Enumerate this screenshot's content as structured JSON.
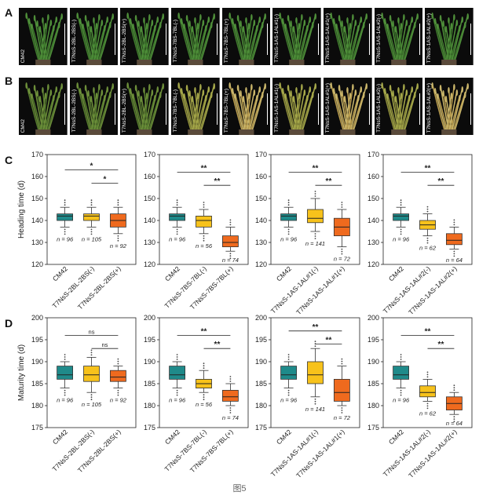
{
  "panels": {
    "A": "A",
    "B": "B",
    "C": "C",
    "D": "D"
  },
  "photos": {
    "row_a": [
      "CM42",
      "T7NsS-2BL-2BS(-)",
      "T7NsS-2BL-2BS(+)",
      "T7NsS-7BS-7BL(-)",
      "T7NsS-7BS-7BL(+)",
      "T7NsS-1AS-1AL#1(-)",
      "T7NsS-1AS-1AL#1(+)",
      "T7NsS-1AS-1AL#2(-)",
      "T7NsS-1AS-1AL#2(+)"
    ],
    "row_b": [
      "CM42",
      "T7NsS-2BL-2BS(-)",
      "T7NsS-2BL-2BS(+)",
      "T7NsS-7BS-7BL(-)",
      "T7NsS-7BS-7BL(+)",
      "T7NsS-1AS-1AL#1(-)",
      "T7NsS-1AS-1AL#1(+)",
      "T7NsS-1AS-1AL#2(-)",
      "T7NsS-1AS-1AL#2(+)"
    ]
  },
  "colors": {
    "teal": "#1f8a8a",
    "yellow": "#f7c21b",
    "orange": "#ef6a1e",
    "green_plant": "#4f8f3a",
    "photo_bg": "#0b0b0b"
  },
  "chart_data": [
    {
      "type": "box",
      "row": "C",
      "ylabel": "Heading time (d)",
      "ylim": [
        120,
        170
      ],
      "yticks": [
        120,
        130,
        140,
        150,
        160,
        170
      ],
      "categories": [
        "CM42",
        "T7NsS-2BL-2BS(-)",
        "T7NsS-2BL-2BS(+)"
      ],
      "boxes": [
        {
          "min": 137,
          "q1": 140,
          "median": 142,
          "q3": 143,
          "max": 146,
          "color": "teal",
          "n": "n = 96"
        },
        {
          "min": 137,
          "q1": 140,
          "median": 142,
          "q3": 143,
          "max": 146,
          "color": "yellow",
          "n": "n = 105"
        },
        {
          "min": 134,
          "q1": 137,
          "median": 140,
          "q3": 143,
          "max": 146,
          "color": "orange",
          "n": "n = 92"
        }
      ],
      "sig": [
        {
          "from": 0,
          "to": 2,
          "label": "*",
          "y": 163
        },
        {
          "from": 1,
          "to": 2,
          "label": "*",
          "y": 157
        }
      ]
    },
    {
      "type": "box",
      "row": "C",
      "ylabel": "",
      "ylim": [
        120,
        170
      ],
      "yticks": [
        120,
        130,
        140,
        150,
        160,
        170
      ],
      "categories": [
        "CM42",
        "T7NsS-7BS-7BL(-)",
        "T7NsS-7BS-7BL(+)"
      ],
      "boxes": [
        {
          "min": 137,
          "q1": 140,
          "median": 142,
          "q3": 143,
          "max": 146,
          "color": "teal",
          "n": "n = 96"
        },
        {
          "min": 134,
          "q1": 137,
          "median": 140,
          "q3": 142,
          "max": 145,
          "color": "yellow",
          "n": "n = 56"
        },
        {
          "min": 126,
          "q1": 128,
          "median": 130,
          "q3": 133,
          "max": 137,
          "color": "orange",
          "n": "n = 74"
        }
      ],
      "sig": [
        {
          "from": 0,
          "to": 2,
          "label": "**",
          "y": 162
        },
        {
          "from": 1,
          "to": 2,
          "label": "**",
          "y": 156
        }
      ]
    },
    {
      "type": "box",
      "row": "C",
      "ylabel": "",
      "ylim": [
        120,
        170
      ],
      "yticks": [
        120,
        130,
        140,
        150,
        160,
        170
      ],
      "categories": [
        "CM42",
        "T7NsS-1AS-1AL#1(-)",
        "T7NsS-1AS-1AL#1(+)"
      ],
      "boxes": [
        {
          "min": 137,
          "q1": 140,
          "median": 142,
          "q3": 143,
          "max": 146,
          "color": "teal",
          "n": "n = 96"
        },
        {
          "min": 135,
          "q1": 139,
          "median": 141,
          "q3": 145,
          "max": 150,
          "color": "yellow",
          "n": "n = 141"
        },
        {
          "min": 128,
          "q1": 133,
          "median": 137,
          "q3": 141,
          "max": 145,
          "color": "orange",
          "n": "n = 72"
        }
      ],
      "sig": [
        {
          "from": 0,
          "to": 2,
          "label": "**",
          "y": 162
        },
        {
          "from": 1,
          "to": 2,
          "label": "**",
          "y": 156
        }
      ]
    },
    {
      "type": "box",
      "row": "C",
      "ylabel": "",
      "ylim": [
        120,
        170
      ],
      "yticks": [
        120,
        130,
        140,
        150,
        160,
        170
      ],
      "categories": [
        "CM42",
        "T7NsS-1AS-1AL#2(-)",
        "T7NsS-1AS-1AL#2(+)"
      ],
      "boxes": [
        {
          "min": 137,
          "q1": 140,
          "median": 142,
          "q3": 143,
          "max": 146,
          "color": "teal",
          "n": "n = 96"
        },
        {
          "min": 133,
          "q1": 136,
          "median": 138,
          "q3": 140,
          "max": 143,
          "color": "yellow",
          "n": "n = 62"
        },
        {
          "min": 127,
          "q1": 129,
          "median": 131,
          "q3": 134,
          "max": 137,
          "color": "orange",
          "n": "n = 64"
        }
      ],
      "sig": [
        {
          "from": 0,
          "to": 2,
          "label": "**",
          "y": 162
        },
        {
          "from": 1,
          "to": 2,
          "label": "**",
          "y": 156
        }
      ]
    },
    {
      "type": "box",
      "row": "D",
      "ylabel": "Maturity time (d)",
      "ylim": [
        175,
        200
      ],
      "yticks": [
        175,
        180,
        185,
        190,
        195,
        200
      ],
      "categories": [
        "CM42",
        "T7NsS-2BL-2BS(-)",
        "T7NsS-2BL-2BS(+)"
      ],
      "boxes": [
        {
          "min": 184,
          "q1": 186,
          "median": 187,
          "q3": 189,
          "max": 190,
          "color": "teal",
          "n": "n = 96"
        },
        {
          "min": 183,
          "q1": 185.5,
          "median": 187,
          "q3": 189,
          "max": 191,
          "color": "yellow",
          "n": "n = 105"
        },
        {
          "min": 184,
          "q1": 185.5,
          "median": 186.5,
          "q3": 188,
          "max": 189,
          "color": "orange",
          "n": "n = 92"
        }
      ],
      "sig": [
        {
          "from": 0,
          "to": 2,
          "label": "ns",
          "y": 196
        },
        {
          "from": 1,
          "to": 2,
          "label": "ns",
          "y": 193
        }
      ]
    },
    {
      "type": "box",
      "row": "D",
      "ylabel": "",
      "ylim": [
        175,
        200
      ],
      "yticks": [
        175,
        180,
        185,
        190,
        195,
        200
      ],
      "categories": [
        "CM42",
        "T7NsS-7BS-7BL(-)",
        "T7NsS-7BS-7BL(+)"
      ],
      "boxes": [
        {
          "min": 184,
          "q1": 186,
          "median": 187,
          "q3": 189,
          "max": 190,
          "color": "teal",
          "n": "n = 96"
        },
        {
          "min": 183,
          "q1": 184,
          "median": 185,
          "q3": 186,
          "max": 188,
          "color": "yellow",
          "n": "n = 56"
        },
        {
          "min": 180,
          "q1": 181,
          "median": 182,
          "q3": 183.5,
          "max": 185,
          "color": "orange",
          "n": "n = 74"
        }
      ],
      "sig": [
        {
          "from": 0,
          "to": 2,
          "label": "**",
          "y": 196
        },
        {
          "from": 1,
          "to": 2,
          "label": "**",
          "y": 193
        }
      ]
    },
    {
      "type": "box",
      "row": "D",
      "ylabel": "",
      "ylim": [
        175,
        200
      ],
      "yticks": [
        175,
        180,
        185,
        190,
        195,
        200
      ],
      "categories": [
        "CM42",
        "T7NsS-1AS-1AL#1(-)",
        "T7NsS-1AS-1AL#1(+)"
      ],
      "boxes": [
        {
          "min": 184,
          "q1": 186,
          "median": 187,
          "q3": 189,
          "max": 190,
          "color": "teal",
          "n": "n = 96"
        },
        {
          "min": 182,
          "q1": 185,
          "median": 187,
          "q3": 190,
          "max": 193,
          "color": "yellow",
          "n": "n = 141"
        },
        {
          "min": 180,
          "q1": 181,
          "median": 183,
          "q3": 186,
          "max": 189,
          "color": "orange",
          "n": "n = 72"
        }
      ],
      "sig": [
        {
          "from": 0,
          "to": 2,
          "label": "**",
          "y": 197
        },
        {
          "from": 1,
          "to": 2,
          "label": "**",
          "y": 194
        }
      ]
    },
    {
      "type": "box",
      "row": "D",
      "ylabel": "",
      "ylim": [
        175,
        200
      ],
      "yticks": [
        175,
        180,
        185,
        190,
        195,
        200
      ],
      "categories": [
        "CM42",
        "T7NsS-1AS-1AL#2(-)",
        "T7NsS-1AS-1AL#2(+)"
      ],
      "boxes": [
        {
          "min": 184,
          "q1": 186,
          "median": 187,
          "q3": 189,
          "max": 190,
          "color": "teal",
          "n": "n = 96"
        },
        {
          "min": 181,
          "q1": 182,
          "median": 183,
          "q3": 184.5,
          "max": 186,
          "color": "yellow",
          "n": "n = 62"
        },
        {
          "min": 178,
          "q1": 179,
          "median": 180.5,
          "q3": 182,
          "max": 183,
          "color": "orange",
          "n": "n = 64"
        }
      ],
      "sig": [
        {
          "from": 0,
          "to": 2,
          "label": "**",
          "y": 196
        },
        {
          "from": 1,
          "to": 2,
          "label": "**",
          "y": 193
        }
      ]
    }
  ],
  "caption": "图5"
}
